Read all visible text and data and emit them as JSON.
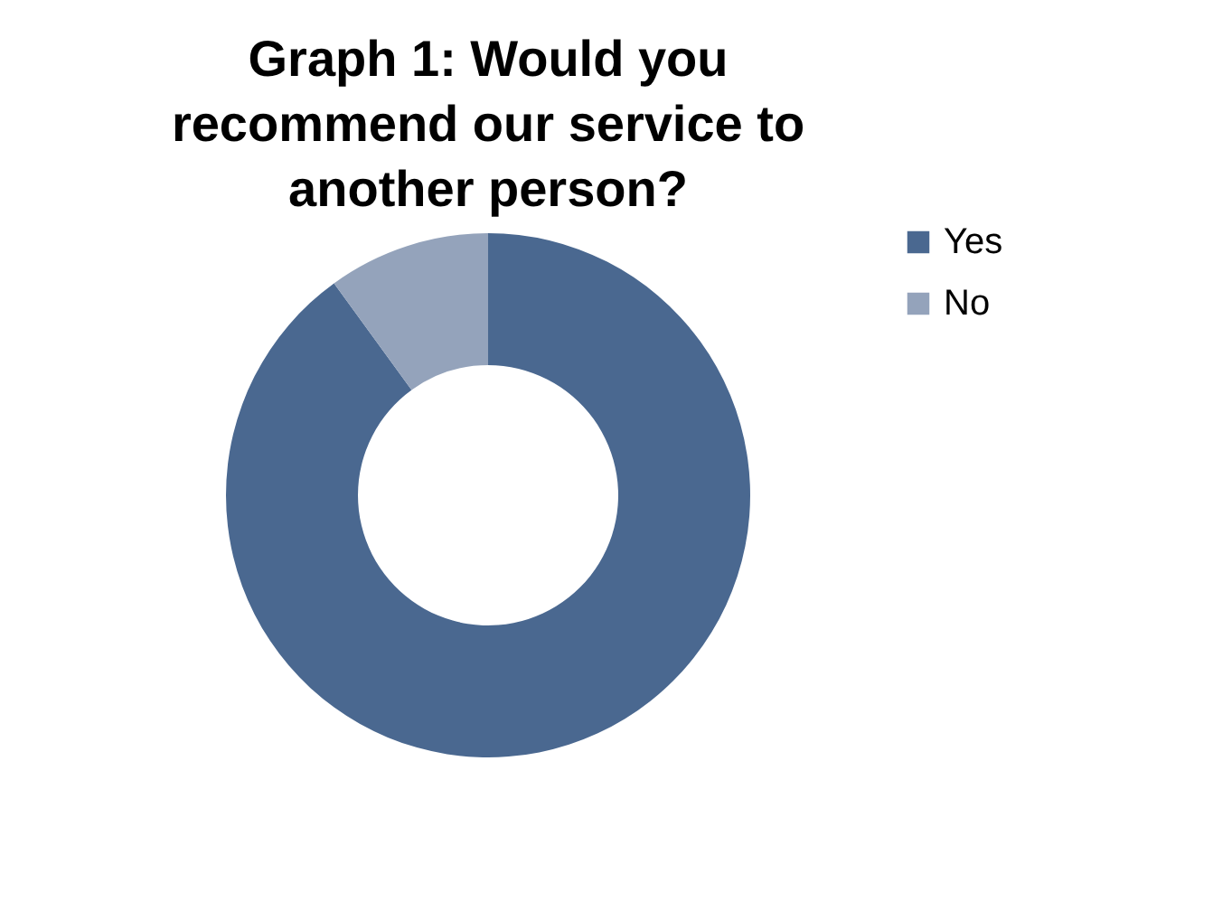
{
  "chart_data": {
    "type": "donut",
    "title": "Graph 1: Would you recommend our service to another person?",
    "categories": [
      "Yes",
      "No"
    ],
    "values": [
      90,
      10
    ],
    "colors": [
      "#4a6890",
      "#94a3bb"
    ],
    "legend": "right"
  }
}
